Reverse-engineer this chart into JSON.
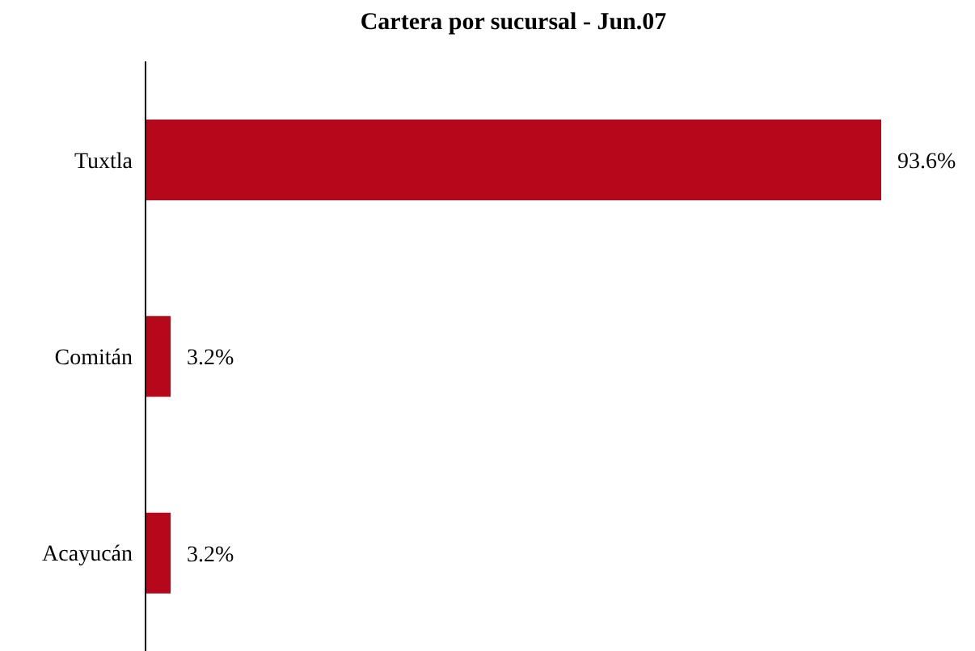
{
  "chart_data": {
    "type": "bar",
    "orientation": "horizontal",
    "title": "Cartera por sucursal - Jun.07",
    "categories": [
      "Tuxtla",
      "Comitán",
      "Acayucán"
    ],
    "values": [
      93.6,
      3.2,
      3.2
    ],
    "value_labels": [
      "93.6%",
      "3.2%",
      "3.2%"
    ],
    "color": "#b5081a"
  }
}
